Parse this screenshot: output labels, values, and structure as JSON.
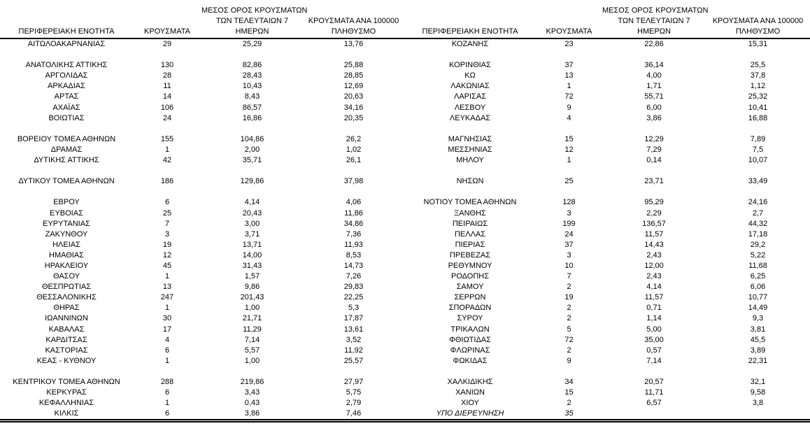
{
  "colors": {
    "text": "#000000",
    "background": "#ffffff",
    "rule": "#000000"
  },
  "table": {
    "header": {
      "region": "ΠΕΡΙΦΕΡΕΙΑΚΗ ΕΝΟΤΗΤΑ",
      "cases": "ΚΡΟΥΣΜΑΤΑ",
      "avg7_line1": "ΜΕΣΟΣ ΟΡΟΣ ΚΡΟΥΣΜΑΤΩΝ",
      "avg7_line2": "ΤΩΝ ΤΕΛΕΥΤΑΙΩΝ 7",
      "avg7_line3": "ΗΜΕΡΩΝ",
      "per100k_line1": "ΚΡΟΥΣΜΑΤΑ ΑΝΑ 100000",
      "per100k_line2": "ΠΛΗΘΥΣΜΟ"
    },
    "rows": [
      {
        "left": {
          "region": "ΑΙΤΩΛΟΑΚΑΡΝΑΝΙΑΣ",
          "cases": "29",
          "avg7": "25,29",
          "per100k": "13,76"
        },
        "right": {
          "region": "ΚΟΖΑΝΗΣ",
          "cases": "23",
          "avg7": "22,86",
          "per100k": "15,31"
        }
      },
      {
        "left": null,
        "right": null
      },
      {
        "left": {
          "region": "ΑΝΑΤΟΛΙΚΗΣ ΑΤΤΙΚΗΣ",
          "cases": "130",
          "avg7": "82,86",
          "per100k": "25,88"
        },
        "right": {
          "region": "ΚΟΡΙΝΘΙΑΣ",
          "cases": "37",
          "avg7": "36,14",
          "per100k": "25,5"
        }
      },
      {
        "left": {
          "region": "ΑΡΓΟΛΙΔΑΣ",
          "cases": "28",
          "avg7": "28,43",
          "per100k": "28,85"
        },
        "right": {
          "region": "ΚΩ",
          "cases": "13",
          "avg7": "4,00",
          "per100k": "37,8"
        }
      },
      {
        "left": {
          "region": "ΑΡΚΑΔΙΑΣ",
          "cases": "11",
          "avg7": "10,43",
          "per100k": "12,69"
        },
        "right": {
          "region": "ΛΑΚΩΝΙΑΣ",
          "cases": "1",
          "avg7": "1,71",
          "per100k": "1,12"
        }
      },
      {
        "left": {
          "region": "ΑΡΤΑΣ",
          "cases": "14",
          "avg7": "8,43",
          "per100k": "20,63"
        },
        "right": {
          "region": "ΛΑΡΙΣΑΣ",
          "cases": "72",
          "avg7": "55,71",
          "per100k": "25,32"
        }
      },
      {
        "left": {
          "region": "ΑΧΑΪΑΣ",
          "cases": "106",
          "avg7": "86,57",
          "per100k": "34,16"
        },
        "right": {
          "region": "ΛΕΣΒΟΥ",
          "cases": "9",
          "avg7": "6,00",
          "per100k": "10,41"
        }
      },
      {
        "left": {
          "region": "ΒΟΙΩΤΙΑΣ",
          "cases": "24",
          "avg7": "16,86",
          "per100k": "20,35"
        },
        "right": {
          "region": "ΛΕΥΚΑΔΑΣ",
          "cases": "4",
          "avg7": "3,86",
          "per100k": "16,88"
        }
      },
      {
        "left": null,
        "right": null
      },
      {
        "left": {
          "region": "ΒΟΡΕΙΟΥ ΤΟΜΕΑ ΑΘΗΝΩΝ",
          "cases": "155",
          "avg7": "104,86",
          "per100k": "26,2"
        },
        "right": {
          "region": "ΜΑΓΝΗΣΙΑΣ",
          "cases": "15",
          "avg7": "12,29",
          "per100k": "7,89"
        }
      },
      {
        "left": {
          "region": "ΔΡΑΜΑΣ",
          "cases": "1",
          "avg7": "2,00",
          "per100k": "1,02"
        },
        "right": {
          "region": "ΜΕΣΣΗΝΙΑΣ",
          "cases": "12",
          "avg7": "7,29",
          "per100k": "7,5"
        }
      },
      {
        "left": {
          "region": "ΔΥΤΙΚΗΣ ΑΤΤΙΚΗΣ",
          "cases": "42",
          "avg7": "35,71",
          "per100k": "26,1"
        },
        "right": {
          "region": "ΜΗΛΟΥ",
          "cases": "1",
          "avg7": "0,14",
          "per100k": "10,07"
        }
      },
      {
        "left": null,
        "right": null
      },
      {
        "left": {
          "region": "ΔΥΤΙΚΟΥ ΤΟΜΕΑ ΑΘΗΝΩΝ",
          "cases": "186",
          "avg7": "129,86",
          "per100k": "37,98"
        },
        "right": {
          "region": "ΝΗΣΩΝ",
          "cases": "25",
          "avg7": "23,71",
          "per100k": "33,49"
        }
      },
      {
        "left": null,
        "right": null
      },
      {
        "left": {
          "region": "ΕΒΡΟΥ",
          "cases": "6",
          "avg7": "4,14",
          "per100k": "4,06"
        },
        "right": {
          "region": "ΝΟΤΙΟΥ ΤΟΜΕΑ ΑΘΗΝΩΝ",
          "cases": "128",
          "avg7": "95,29",
          "per100k": "24,16"
        }
      },
      {
        "left": {
          "region": "ΕΥΒΟΙΑΣ",
          "cases": "25",
          "avg7": "20,43",
          "per100k": "11,86"
        },
        "right": {
          "region": "ΞΑΝΘΗΣ",
          "cases": "3",
          "avg7": "2,29",
          "per100k": "2,7"
        }
      },
      {
        "left": {
          "region": "ΕΥΡΥΤΑΝΙΑΣ",
          "cases": "7",
          "avg7": "3,00",
          "per100k": "34,86"
        },
        "right": {
          "region": "ΠΕΙΡΑΙΩΣ",
          "cases": "199",
          "avg7": "136,57",
          "per100k": "44,32"
        }
      },
      {
        "left": {
          "region": "ΖΑΚΥΝΘΟΥ",
          "cases": "3",
          "avg7": "3,71",
          "per100k": "7,36"
        },
        "right": {
          "region": "ΠΕΛΛΑΣ",
          "cases": "24",
          "avg7": "11,57",
          "per100k": "17,18"
        }
      },
      {
        "left": {
          "region": "ΗΛΕΙΑΣ",
          "cases": "19",
          "avg7": "13,71",
          "per100k": "11,93"
        },
        "right": {
          "region": "ΠΙΕΡΙΑΣ",
          "cases": "37",
          "avg7": "14,43",
          "per100k": "29,2"
        }
      },
      {
        "left": {
          "region": "ΗΜΑΘΙΑΣ",
          "cases": "12",
          "avg7": "14,00",
          "per100k": "8,53"
        },
        "right": {
          "region": "ΠΡΕΒΕΖΑΣ",
          "cases": "3",
          "avg7": "2,43",
          "per100k": "5,22"
        }
      },
      {
        "left": {
          "region": "ΗΡΑΚΛΕΙΟΥ",
          "cases": "45",
          "avg7": "31,43",
          "per100k": "14,73"
        },
        "right": {
          "region": "ΡΕΘΥΜΝΟΥ",
          "cases": "10",
          "avg7": "12,00",
          "per100k": "11,68"
        }
      },
      {
        "left": {
          "region": "ΘΑΣΟΥ",
          "cases": "1",
          "avg7": "1,57",
          "per100k": "7,26"
        },
        "right": {
          "region": "ΡΟΔΟΠΗΣ",
          "cases": "7",
          "avg7": "2,43",
          "per100k": "6,25"
        }
      },
      {
        "left": {
          "region": "ΘΕΣΠΡΩΤΙΑΣ",
          "cases": "13",
          "avg7": "9,86",
          "per100k": "29,83"
        },
        "right": {
          "region": "ΣΑΜΟΥ",
          "cases": "2",
          "avg7": "4,14",
          "per100k": "6,06"
        }
      },
      {
        "left": {
          "region": "ΘΕΣΣΑΛΟΝΙΚΗΣ",
          "cases": "247",
          "avg7": "201,43",
          "per100k": "22,25"
        },
        "right": {
          "region": "ΣΕΡΡΩΝ",
          "cases": "19",
          "avg7": "11,57",
          "per100k": "10,77"
        }
      },
      {
        "left": {
          "region": "ΘΗΡΑΣ",
          "cases": "1",
          "avg7": "1,00",
          "per100k": "5,3"
        },
        "right": {
          "region": "ΣΠΟΡΑΔΩΝ",
          "cases": "2",
          "avg7": "0,71",
          "per100k": "14,49"
        }
      },
      {
        "left": {
          "region": "ΙΩΑΝΝΙΝΩΝ",
          "cases": "30",
          "avg7": "21,71",
          "per100k": "17,87"
        },
        "right": {
          "region": "ΣΥΡΟΥ",
          "cases": "2",
          "avg7": "1,14",
          "per100k": "9,3"
        }
      },
      {
        "left": {
          "region": "ΚΑΒΑΛΑΣ",
          "cases": "17",
          "avg7": "11,29",
          "per100k": "13,61"
        },
        "right": {
          "region": "ΤΡΙΚΑΛΩΝ",
          "cases": "5",
          "avg7": "5,00",
          "per100k": "3,81"
        }
      },
      {
        "left": {
          "region": "ΚΑΡΔΙΤΣΑΣ",
          "cases": "4",
          "avg7": "7,14",
          "per100k": "3,52"
        },
        "right": {
          "region": "ΦΘΙΩΤΙΔΑΣ",
          "cases": "72",
          "avg7": "35,00",
          "per100k": "45,5"
        }
      },
      {
        "left": {
          "region": "ΚΑΣΤΟΡΙΑΣ",
          "cases": "6",
          "avg7": "5,57",
          "per100k": "11,92"
        },
        "right": {
          "region": "ΦΛΩΡΙΝΑΣ",
          "cases": "2",
          "avg7": "0,57",
          "per100k": "3,89"
        }
      },
      {
        "left": {
          "region": "ΚΕΑΣ - ΚΥΘΝΟΥ",
          "cases": "1",
          "avg7": "1,00",
          "per100k": "25,57"
        },
        "right": {
          "region": "ΦΩΚΙΔΑΣ",
          "cases": "9",
          "avg7": "7,14",
          "per100k": "22,31"
        }
      },
      {
        "left": null,
        "right": null
      },
      {
        "left": {
          "region": "ΚΕΝΤΡΙΚΟΥ ΤΟΜΕΑ ΑΘΗΝΩΝ",
          "cases": "288",
          "avg7": "219,86",
          "per100k": "27,97"
        },
        "right": {
          "region": "ΧΑΛΚΙΔΙΚΗΣ",
          "cases": "34",
          "avg7": "20,57",
          "per100k": "32,1"
        }
      },
      {
        "left": {
          "region": "ΚΕΡΚΥΡΑΣ",
          "cases": "6",
          "avg7": "3,43",
          "per100k": "5,75"
        },
        "right": {
          "region": "ΧΑΝΙΩΝ",
          "cases": "15",
          "avg7": "11,71",
          "per100k": "9,58"
        }
      },
      {
        "left": {
          "region": "ΚΕΦΑΛΛΗΝΙΑΣ",
          "cases": "1",
          "avg7": "0,43",
          "per100k": "2,79"
        },
        "right": {
          "region": "ΧΙΟΥ",
          "cases": "2",
          "avg7": "6,57",
          "per100k": "3,8"
        }
      },
      {
        "left": {
          "region": "ΚΙΛΚΙΣ",
          "cases": "6",
          "avg7": "3,86",
          "per100k": "7,46"
        },
        "right": {
          "region": "ΥΠΟ ΔΙΕΡΕΥΝΗΣΗ",
          "cases": "35",
          "avg7": "",
          "per100k": "",
          "italic": true
        }
      }
    ]
  }
}
